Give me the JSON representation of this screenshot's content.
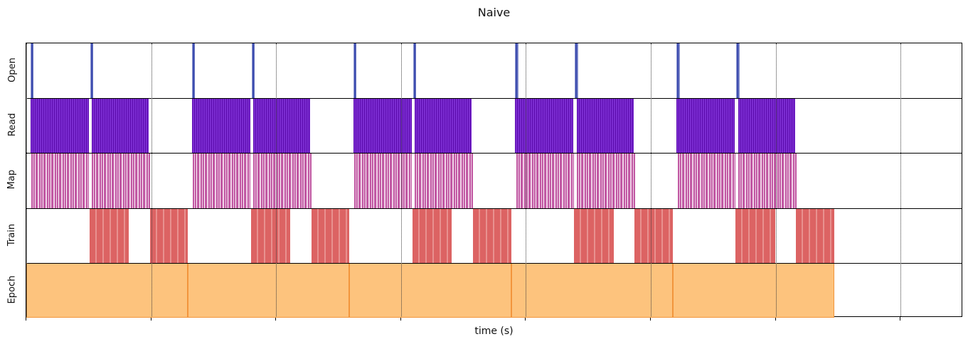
{
  "chart_data": {
    "type": "gantt",
    "title": "Naive",
    "xlabel": "time (s)",
    "ylabel": "",
    "x_axis": {
      "min": 0,
      "max": 1317,
      "units": "plot-pixels (no numeric tick labels are displayed on the axis)",
      "tick_positions": [
        0,
        175.6,
        351.2,
        526.8,
        702.4,
        878.0,
        1053.6,
        1229.2
      ],
      "tick_labels": [],
      "gridlines": "vertical dotted black lines at every tick, drawn over the bars"
    },
    "legend": null,
    "rows": [
      {
        "key": "open",
        "label": "Open",
        "color": "#3e4eb0",
        "pattern": "thin solid indigo-blue bars, full row height",
        "intervals": [
          [
            5.5,
            10.0
          ],
          [
            89.5,
            94.0
          ],
          [
            232.7,
            237.2
          ],
          [
            316.7,
            321.2
          ],
          [
            459.9,
            464.4
          ],
          [
            543.9,
            548.4
          ],
          [
            687.1,
            691.6
          ],
          [
            771.1,
            775.6
          ],
          [
            914.3,
            918.8
          ],
          [
            998.3,
            1002.8
          ]
        ]
      },
      {
        "key": "read",
        "label": "Read",
        "color": "#6b16c4",
        "pattern": "dense dark/light purple vertical striping (many adjacent thin bars)",
        "intervals": [
          [
            5.5,
            87.5
          ],
          [
            92.0,
            172.0
          ],
          [
            232.7,
            314.7
          ],
          [
            319.2,
            399.2
          ],
          [
            459.9,
            541.9
          ],
          [
            546.4,
            626.4
          ],
          [
            687.1,
            769.1
          ],
          [
            773.6,
            853.6
          ],
          [
            914.3,
            996.3
          ],
          [
            1000.8,
            1080.8
          ]
        ]
      },
      {
        "key": "map",
        "label": "Map",
        "color": "#c158a3",
        "pattern": "sparse pink vertical stripes with white gaps",
        "intervals": [
          [
            7.0,
            88.0
          ],
          [
            92.0,
            174.0
          ],
          [
            234.2,
            315.2
          ],
          [
            319.2,
            401.2
          ],
          [
            461.4,
            542.4
          ],
          [
            546.4,
            628.4
          ],
          [
            688.6,
            769.6
          ],
          [
            773.6,
            855.6
          ],
          [
            915.8,
            996.8
          ],
          [
            1000.8,
            1082.8
          ]
        ]
      },
      {
        "key": "train",
        "label": "Train",
        "color": "#dc6363",
        "pattern": "salmon-red blocks with faint lighter vertical stripes",
        "intervals": [
          [
            88.5,
            144.0
          ],
          [
            173.5,
            227.2
          ],
          [
            315.7,
            371.2
          ],
          [
            400.7,
            454.4
          ],
          [
            542.9,
            598.4
          ],
          [
            627.9,
            681.6
          ],
          [
            770.1,
            825.6
          ],
          [
            855.1,
            908.8
          ],
          [
            997.3,
            1052.8
          ],
          [
            1082.3,
            1136.0
          ]
        ]
      },
      {
        "key": "epoch",
        "label": "Epoch",
        "color": "#fdc37d",
        "border_color": "#f2953c",
        "pattern": "continuous light-orange band split by darker orange epoch-boundary lines",
        "intervals": [
          [
            0,
            227.2
          ],
          [
            227.2,
            454.4
          ],
          [
            454.4,
            681.6
          ],
          [
            681.6,
            908.8
          ],
          [
            908.8,
            1136.0
          ]
        ]
      }
    ]
  }
}
